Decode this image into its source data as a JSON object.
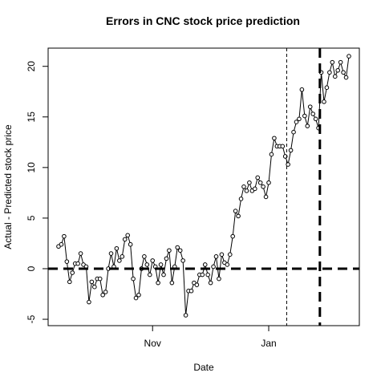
{
  "chart_data": {
    "type": "line",
    "title": "Errors in CNC stock price prediction",
    "x_label": "Date",
    "y_label": "Actual - Predicted stock price",
    "categories": [
      null,
      null,
      null,
      null,
      null,
      null,
      null,
      null,
      null,
      null,
      null,
      null,
      null,
      null,
      null,
      null,
      null,
      null,
      null,
      null,
      null,
      null,
      null,
      null,
      null,
      null,
      null,
      null,
      null,
      null,
      null,
      null,
      null,
      null,
      "Nov",
      null,
      null,
      null,
      null,
      null,
      null,
      null,
      null,
      null,
      null,
      null,
      null,
      null,
      null,
      null,
      null,
      null,
      null,
      null,
      null,
      null,
      null,
      null,
      null,
      null,
      null,
      null,
      null,
      null,
      null,
      null,
      null,
      null,
      null,
      null,
      null,
      null,
      null,
      null,
      null,
      null,
      "Jan",
      null,
      null,
      null,
      null,
      null,
      null,
      null,
      null,
      null,
      null,
      null,
      null,
      null,
      null,
      null,
      null,
      null,
      null,
      null,
      null,
      null,
      null,
      null,
      null,
      null,
      null,
      null,
      null,
      null
    ],
    "values": [
      2.2,
      2.4,
      3.2,
      0.7,
      -1.3,
      -0.4,
      0.5,
      0.5,
      1.5,
      0.4,
      0.2,
      -3.3,
      -1.3,
      -1.8,
      -1,
      -1,
      -2.6,
      -2.3,
      0,
      1.5,
      0.2,
      2.0,
      0.8,
      1.2,
      2.9,
      3.3,
      2.4,
      -1,
      -2.9,
      -2.6,
      0,
      1.2,
      0.4,
      -0.6,
      0.8,
      0.2,
      -1.4,
      0.4,
      -0.6,
      1.0,
      1.8,
      -1.4,
      0.2,
      2.1,
      1.8,
      0.8,
      -4.6,
      -2.2,
      -2.2,
      -1.4,
      -1.6,
      -0.6,
      -0.6,
      0.4,
      -0.6,
      -1.4,
      0.2,
      1.2,
      -1,
      1.4,
      0.6,
      0.4,
      1.4,
      3.2,
      5.7,
      5.2,
      6.9,
      8.1,
      7.7,
      8.5,
      7.7,
      7.9,
      9.0,
      8.5,
      8.1,
      7.1,
      8.5,
      11.3,
      12.9,
      12.1,
      12.1,
      12.1,
      11.1,
      10.3,
      11.7,
      13.5,
      14.5,
      14.8,
      17.7,
      15.1,
      14.1,
      16.0,
      15.3,
      14.8,
      13.9,
      19.4,
      16.5,
      17.9,
      19.4,
      20.4,
      19.0,
      19.6,
      20.4,
      19.4,
      18.9,
      21.0
    ],
    "color": "#000000",
    "ylim": [
      -5.63,
      21.8
    ],
    "yticks": [
      -5,
      0,
      5,
      10,
      15,
      20
    ],
    "hline": 0,
    "vlines": [
      {
        "index": 82.5,
        "style": "thin"
      },
      {
        "index": 94.5,
        "style": "thick"
      }
    ]
  }
}
